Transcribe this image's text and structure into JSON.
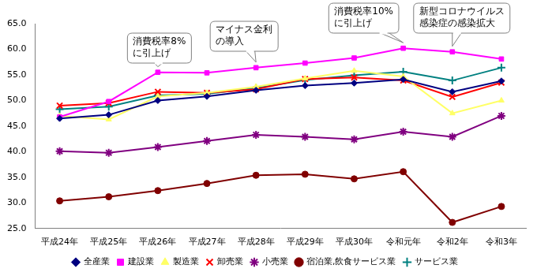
{
  "chart_data": {
    "type": "line",
    "categories": [
      "平成24年",
      "平成25年",
      "平成26年",
      "平成27年",
      "平成28年",
      "平成29年",
      "平成30年",
      "令和元年",
      "令和2年",
      "令和3年"
    ],
    "series": [
      {
        "name": "全産業",
        "color": "#000080",
        "marker": "diamond",
        "line_style": "solid",
        "values": [
          46.5,
          47.2,
          50.0,
          50.8,
          52.0,
          52.9,
          53.4,
          54.1,
          51.7,
          53.8
        ]
      },
      {
        "name": "建設業",
        "color": "#ff00ff",
        "marker": "square",
        "line_style": "solid",
        "values": [
          46.8,
          49.8,
          55.5,
          55.4,
          56.4,
          57.3,
          58.3,
          60.2,
          59.5,
          58.1
        ]
      },
      {
        "name": "製造業",
        "color": "#ffff66",
        "marker": "triangle",
        "line_style": "solid",
        "values": [
          47.0,
          46.3,
          50.8,
          51.5,
          52.7,
          54.3,
          55.8,
          54.7,
          47.5,
          50.0
        ]
      },
      {
        "name": "卸売業",
        "color": "#ff0000",
        "marker": "x",
        "line_style": "solid",
        "values": [
          49.0,
          49.5,
          51.7,
          51.5,
          52.2,
          54.2,
          54.5,
          53.9,
          50.7,
          53.5
        ]
      },
      {
        "name": "小売業",
        "color": "#800080",
        "marker": "star",
        "line_style": "solid",
        "values": [
          40.1,
          39.8,
          40.9,
          42.1,
          43.3,
          42.9,
          42.4,
          43.9,
          42.9,
          47.0
        ]
      },
      {
        "name": "宿泊業,飲食サービス業",
        "color": "#800000",
        "marker": "circle",
        "line_style": "solid",
        "values": [
          30.4,
          31.2,
          32.4,
          33.8,
          35.4,
          35.6,
          34.7,
          36.1,
          26.2,
          29.3
        ]
      },
      {
        "name": "サービス業",
        "color": "#008080",
        "marker": "plus",
        "line_style": "solid",
        "values": [
          48.3,
          48.8,
          51.0,
          51.3,
          52.4,
          54.0,
          54.9,
          55.6,
          53.9,
          56.4
        ]
      }
    ],
    "ylim": [
      25,
      65
    ],
    "yticks": [
      {
        "value": 25,
        "label": "25.0"
      },
      {
        "value": 30,
        "label": "30.0"
      },
      {
        "value": 35,
        "label": "35.0"
      },
      {
        "value": 40,
        "label": "40.0"
      },
      {
        "value": 45,
        "label": "45.0"
      },
      {
        "value": 50,
        "label": "50.0"
      },
      {
        "value": 55,
        "label": "55.0"
      },
      {
        "value": 60,
        "label": "60.0"
      },
      {
        "value": 65,
        "label": "65.0"
      }
    ],
    "grid": false,
    "legend": "bottom",
    "annotations": [
      {
        "text": [
          "消費税率8%",
          "に引上げ"
        ],
        "category": "平成26年"
      },
      {
        "text": [
          "マイナス金利",
          "の導入"
        ],
        "category": "平成28年"
      },
      {
        "text": [
          "消費税率10%",
          "に引上げ"
        ],
        "category": "令和元年"
      },
      {
        "text": [
          "新型コロナウイルス",
          "感染症の感染拡大"
        ],
        "category": "令和2年"
      }
    ]
  }
}
